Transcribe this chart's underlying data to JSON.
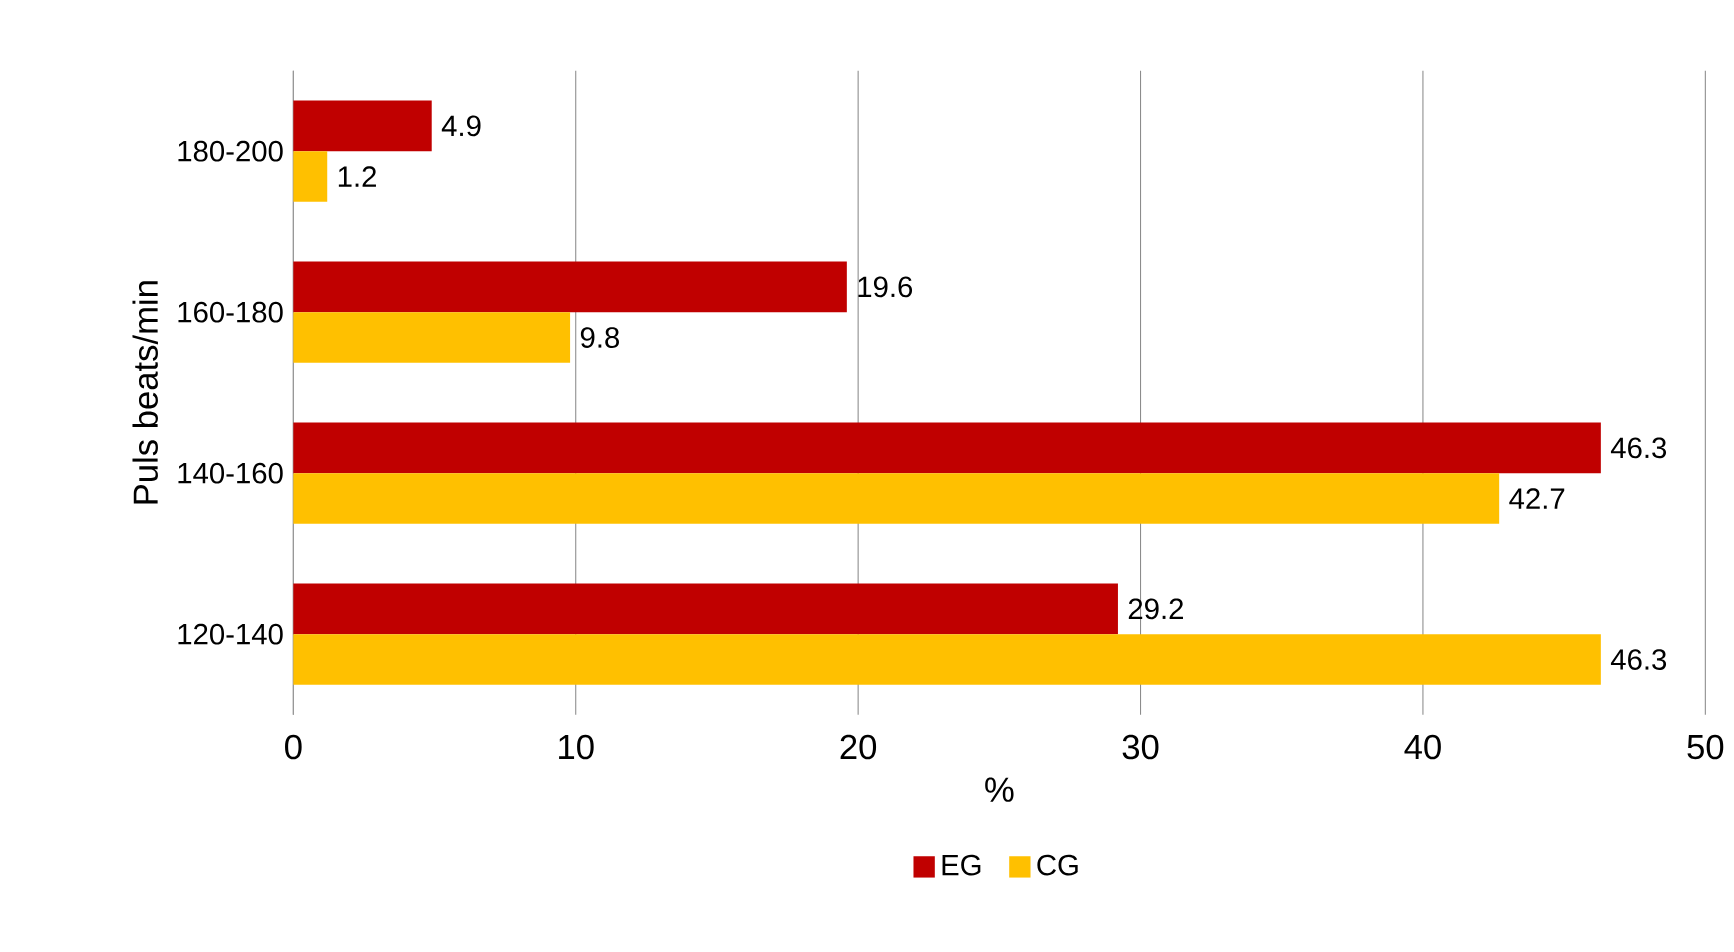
{
  "chart_data": {
    "type": "bar",
    "orientation": "horizontal",
    "categories": [
      "180-200",
      "160-180",
      "140-160",
      "120-140"
    ],
    "series": [
      {
        "name": "EG",
        "color": "#c00000",
        "values": [
          4.9,
          19.6,
          46.3,
          29.2
        ]
      },
      {
        "name": "CG",
        "color": "#ffc000",
        "values": [
          1.2,
          9.8,
          42.7,
          46.3
        ]
      }
    ],
    "xlim": [
      0,
      50
    ],
    "xticks": [
      0,
      10,
      20,
      30,
      40,
      50
    ],
    "grid": "x",
    "legend": "bottom",
    "data_labels": true,
    "xlabel": "%",
    "ylabel": "Puls beats/min"
  }
}
